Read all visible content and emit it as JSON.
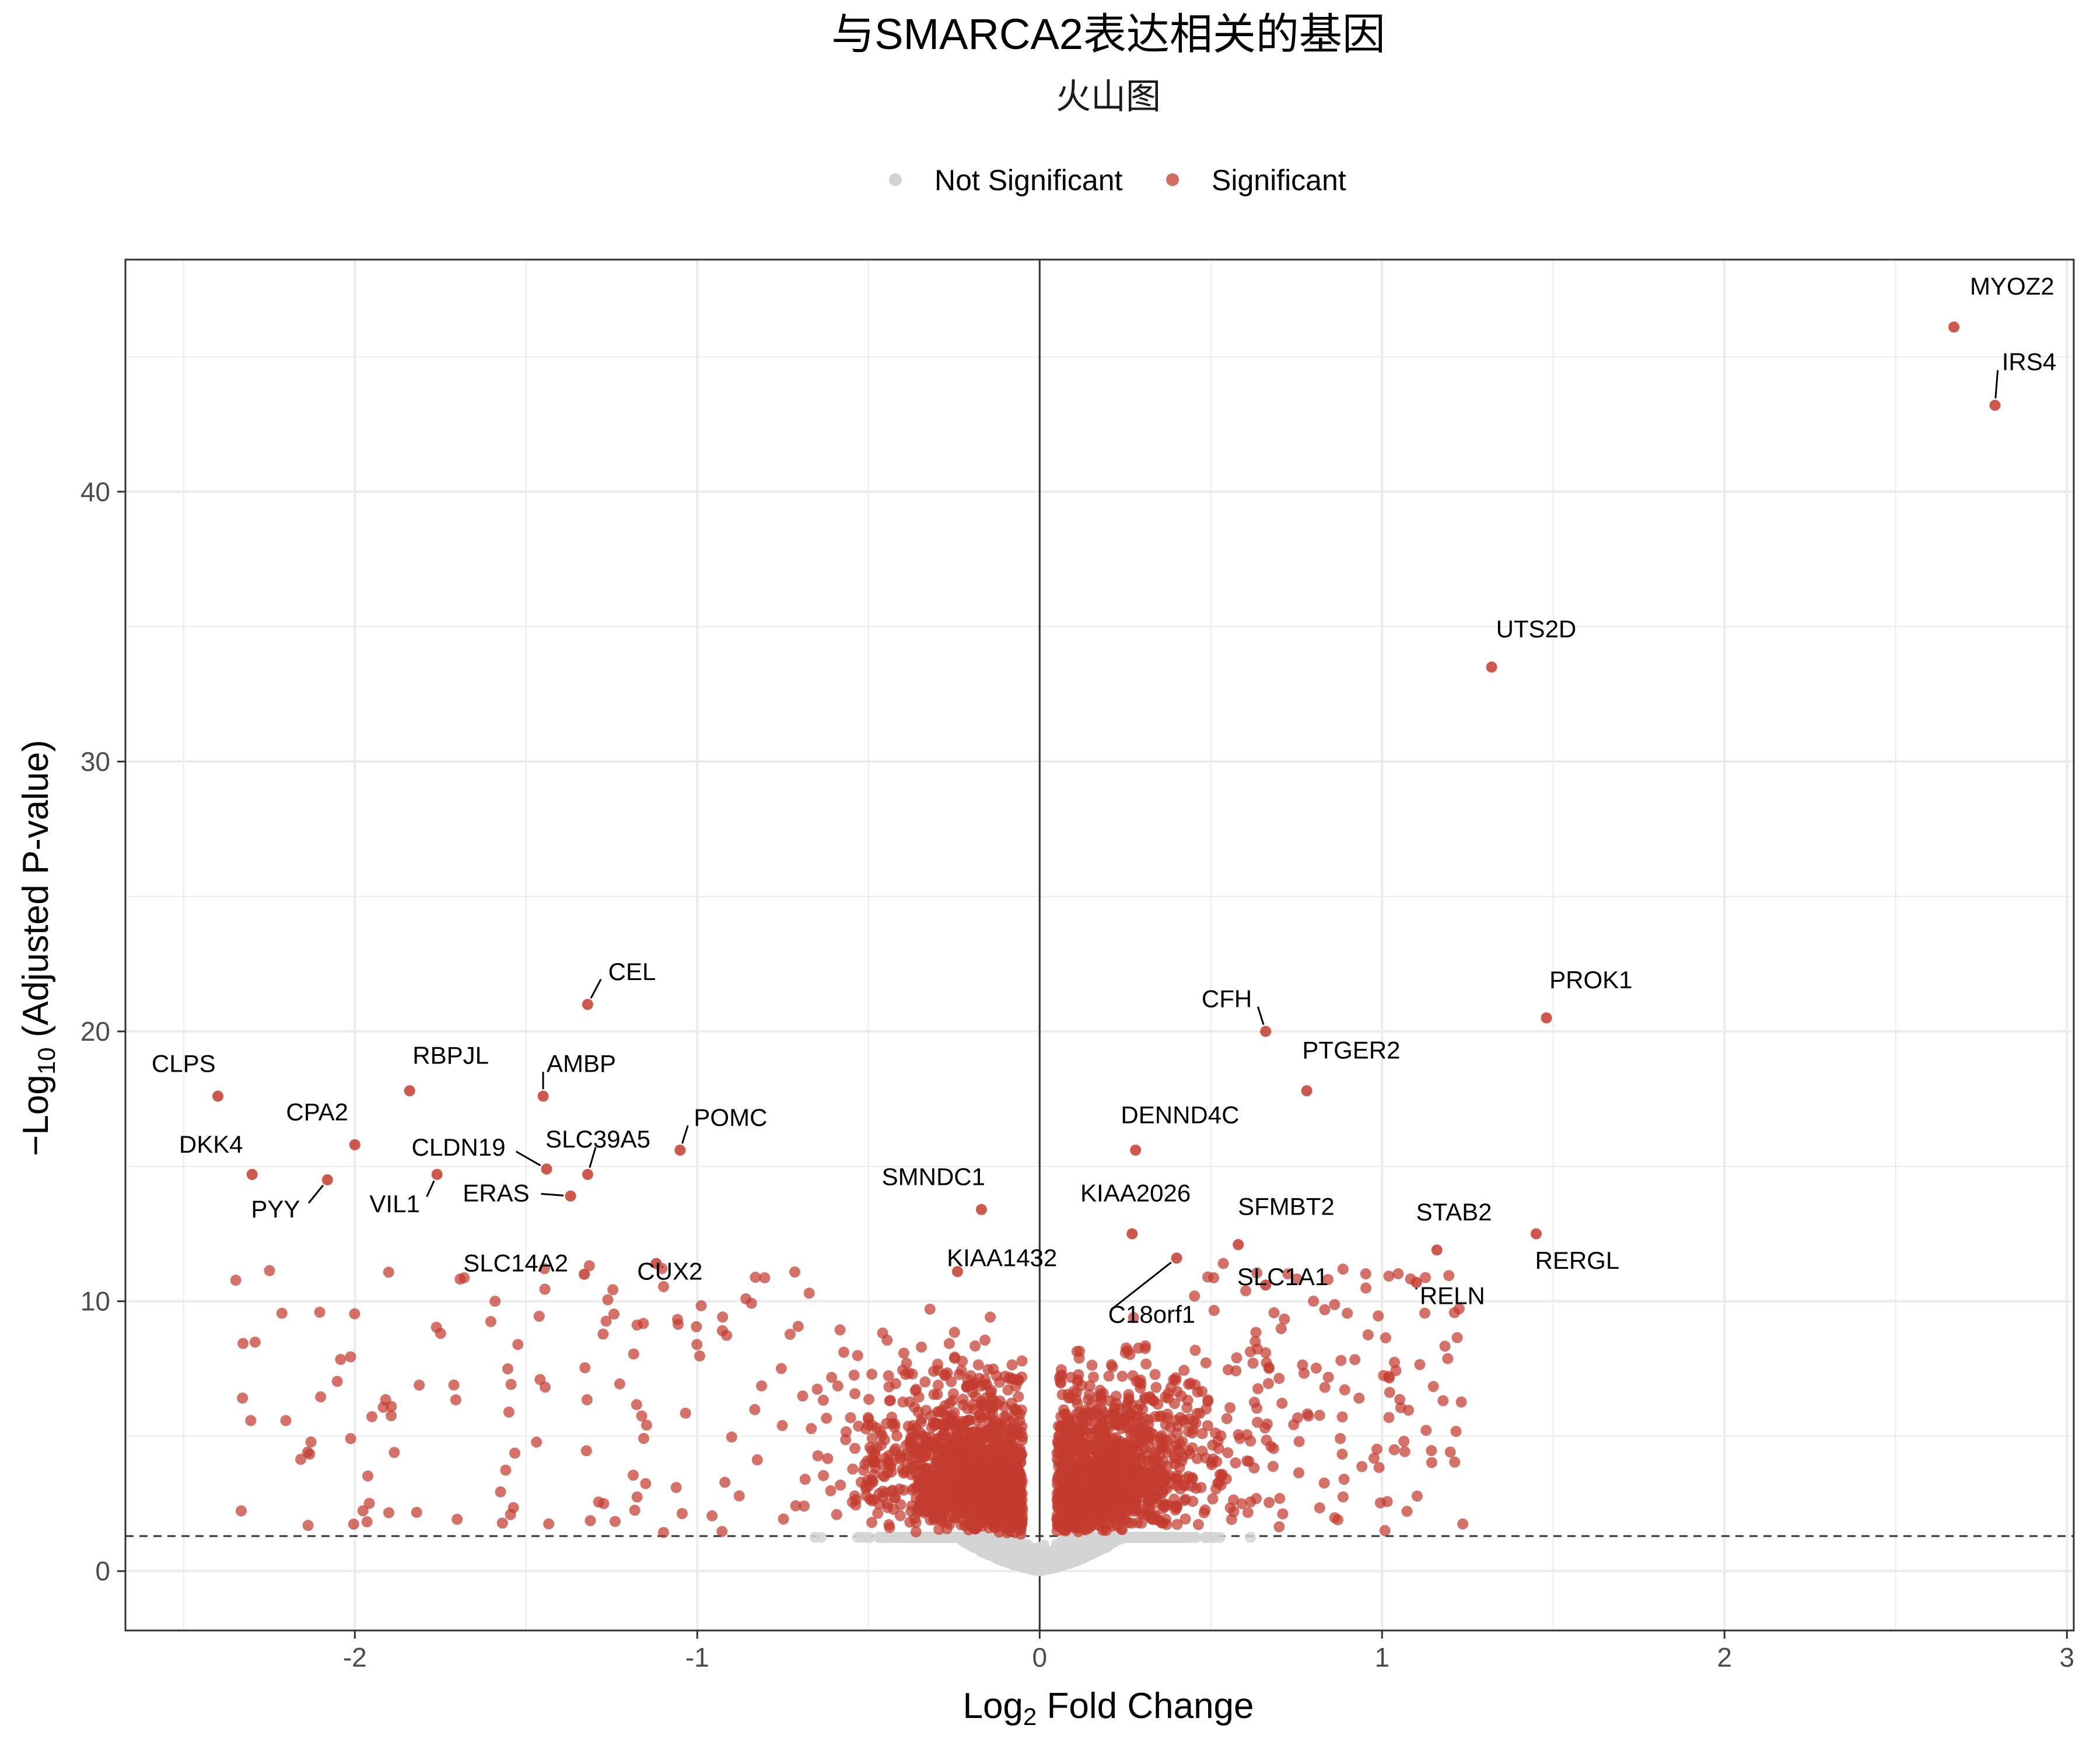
{
  "chart_data": {
    "type": "scatter",
    "title": "与SMARCA2表达相关的基因",
    "subtitle": "火山图",
    "xlabel_main": "Log",
    "xlabel_sub": "2",
    "xlabel_rest": " Fold Change",
    "ylabel_main": "−Log",
    "ylabel_sub": "10",
    "ylabel_rest": " (Adjusted P-value)",
    "legend": {
      "position": "top",
      "items": [
        {
          "label": "Not Significant",
          "color": "#d3d3d3"
        },
        {
          "label": "Significant",
          "color": "#c43c2f"
        }
      ]
    },
    "xlim": [
      -2.67,
      3.02
    ],
    "ylim": [
      -2.2,
      48.6
    ],
    "xticks": [
      -2,
      -1,
      0,
      1,
      2,
      3
    ],
    "xtick_labels": [
      "-2",
      "-1",
      "0",
      "1",
      "2",
      "3"
    ],
    "yticks": [
      0,
      10,
      20,
      30,
      40
    ],
    "ytick_labels": [
      "0",
      "10",
      "20",
      "30",
      "40"
    ],
    "threshold_y": 1.3,
    "vline_x": 0,
    "grid": true,
    "labeled_points": [
      {
        "gene": "MYOZ2",
        "x": 2.67,
        "y": 46.1
      },
      {
        "gene": "IRS4",
        "x": 2.79,
        "y": 43.2
      },
      {
        "gene": "UTS2D",
        "x": 1.32,
        "y": 33.5
      },
      {
        "gene": "PROK1",
        "x": 1.48,
        "y": 20.5
      },
      {
        "gene": "CFH",
        "x": 0.66,
        "y": 20.0
      },
      {
        "gene": "PTGER2",
        "x": 0.78,
        "y": 17.8
      },
      {
        "gene": "DENND4C",
        "x": 0.28,
        "y": 15.6
      },
      {
        "gene": "KIAA2026",
        "x": 0.27,
        "y": 12.5
      },
      {
        "gene": "SFMBT2",
        "x": 0.58,
        "y": 12.1
      },
      {
        "gene": "SLC1A1",
        "x": 0.66,
        "y": 10.6
      },
      {
        "gene": "C18orf1",
        "x": 0.4,
        "y": 11.6
      },
      {
        "gene": "STAB2",
        "x": 1.16,
        "y": 11.9
      },
      {
        "gene": "RERGL",
        "x": 1.45,
        "y": 12.5
      },
      {
        "gene": "RELN",
        "x": 1.1,
        "y": 10.7
      },
      {
        "gene": "SMNDC1",
        "x": -0.17,
        "y": 13.4
      },
      {
        "gene": "KIAA1432",
        "x": -0.24,
        "y": 11.1
      },
      {
        "gene": "CEL",
        "x": -1.32,
        "y": 21.0
      },
      {
        "gene": "CLPS",
        "x": -2.4,
        "y": 17.6
      },
      {
        "gene": "RBPJL",
        "x": -1.84,
        "y": 17.8
      },
      {
        "gene": "AMBP",
        "x": -1.45,
        "y": 17.6
      },
      {
        "gene": "CPA2",
        "x": -2.0,
        "y": 15.8
      },
      {
        "gene": "POMC",
        "x": -1.05,
        "y": 15.6
      },
      {
        "gene": "SLC39A5",
        "x": -1.32,
        "y": 14.7
      },
      {
        "gene": "CLDN19",
        "x": -1.44,
        "y": 14.9
      },
      {
        "gene": "DKK4",
        "x": -2.3,
        "y": 14.7
      },
      {
        "gene": "PYY",
        "x": -2.08,
        "y": 14.5
      },
      {
        "gene": "VIL1",
        "x": -1.76,
        "y": 14.7
      },
      {
        "gene": "ERAS",
        "x": -1.37,
        "y": 13.9
      },
      {
        "gene": "SLC14A2",
        "x": -1.33,
        "y": 11.0
      },
      {
        "gene": "CUX2",
        "x": -1.12,
        "y": 11.4
      }
    ],
    "label_text": [
      {
        "text": "MYOZ2",
        "lx": 2.84,
        "ly": 47.3,
        "anchor": "middle",
        "leader": false
      },
      {
        "text": "IRS4",
        "lx": 2.81,
        "ly": 44.5,
        "anchor": "start",
        "leader": true
      },
      {
        "text": "UTS2D",
        "lx": 1.45,
        "ly": 34.6,
        "anchor": "middle",
        "leader": false
      },
      {
        "text": "PROK1",
        "lx": 1.61,
        "ly": 21.6,
        "anchor": "middle",
        "leader": false
      },
      {
        "text": "CFH",
        "lx": 0.62,
        "ly": 20.9,
        "anchor": "end",
        "leader": true
      },
      {
        "text": "PTGER2",
        "lx": 0.91,
        "ly": 19.0,
        "anchor": "middle",
        "leader": false
      },
      {
        "text": "DENND4C",
        "lx": 0.41,
        "ly": 16.6,
        "anchor": "middle",
        "leader": false
      },
      {
        "text": "KIAA2026",
        "lx": 0.28,
        "ly": 13.7,
        "anchor": "middle",
        "leader": false
      },
      {
        "text": "SFMBT2",
        "lx": 0.72,
        "ly": 13.2,
        "anchor": "middle",
        "leader": false
      },
      {
        "text": "SLC1A1",
        "lx": 0.71,
        "ly": 10.6,
        "anchor": "middle",
        "leader": false
      },
      {
        "text": "C18orf1",
        "lx": 0.2,
        "ly": 9.2,
        "anchor": "start",
        "leader": true
      },
      {
        "text": "STAB2",
        "lx": 1.21,
        "ly": 13.0,
        "anchor": "middle",
        "leader": false
      },
      {
        "text": "RERGL",
        "lx": 1.57,
        "ly": 11.2,
        "anchor": "middle",
        "leader": false
      },
      {
        "text": "RELN",
        "lx": 1.11,
        "ly": 9.9,
        "anchor": "start",
        "leader": true
      },
      {
        "text": "SMNDC1",
        "lx": -0.31,
        "ly": 14.3,
        "anchor": "middle",
        "leader": false
      },
      {
        "text": "KIAA1432",
        "lx": -0.11,
        "ly": 11.3,
        "anchor": "middle",
        "leader": false
      },
      {
        "text": "CEL",
        "lx": -1.26,
        "ly": 21.9,
        "anchor": "start",
        "leader": true
      },
      {
        "text": "CLPS",
        "lx": -2.5,
        "ly": 18.5,
        "anchor": "middle",
        "leader": false
      },
      {
        "text": "RBPJL",
        "lx": -1.72,
        "ly": 18.8,
        "anchor": "middle",
        "leader": false
      },
      {
        "text": "AMBP",
        "lx": -1.44,
        "ly": 18.5,
        "anchor": "start",
        "leader": true
      },
      {
        "text": "CPA2",
        "lx": -2.11,
        "ly": 16.7,
        "anchor": "middle",
        "leader": false
      },
      {
        "text": "POMC",
        "lx": -1.01,
        "ly": 16.5,
        "anchor": "start",
        "leader": true
      },
      {
        "text": "SLC39A5",
        "lx": -1.29,
        "ly": 15.7,
        "anchor": "middle",
        "leader": true
      },
      {
        "text": "CLDN19",
        "lx": -1.56,
        "ly": 15.4,
        "anchor": "end",
        "leader": true
      },
      {
        "text": "DKK4",
        "lx": -2.42,
        "ly": 15.5,
        "anchor": "middle",
        "leader": false
      },
      {
        "text": "PYY",
        "lx": -2.16,
        "ly": 13.1,
        "anchor": "end",
        "leader": true
      },
      {
        "text": "VIL1",
        "lx": -1.81,
        "ly": 13.3,
        "anchor": "end",
        "leader": true
      },
      {
        "text": "ERAS",
        "lx": -1.49,
        "ly": 13.7,
        "anchor": "end",
        "leader": true
      },
      {
        "text": "SLC14A2",
        "lx": -1.53,
        "ly": 11.1,
        "anchor": "middle",
        "leader": false
      },
      {
        "text": "CUX2",
        "lx": -1.08,
        "ly": 10.8,
        "anchor": "middle",
        "leader": true
      }
    ],
    "colors": {
      "significant": "#c43c2f",
      "not_significant": "#d3d3d3",
      "grid": "#ebebeb",
      "axis": "#333333",
      "label": "#000000",
      "tick_label": "#4d4d4d"
    }
  }
}
